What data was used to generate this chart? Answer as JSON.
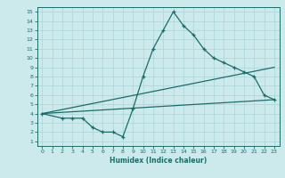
{
  "bg_color": "#cce9ec",
  "line_color": "#1a6e6a",
  "grid_color": "#aad4d8",
  "xlabel": "Humidex (Indice chaleur)",
  "xlim": [
    -0.5,
    23.5
  ],
  "ylim": [
    0.5,
    15.5
  ],
  "xticks": [
    0,
    1,
    2,
    3,
    4,
    5,
    6,
    7,
    8,
    9,
    10,
    11,
    12,
    13,
    14,
    15,
    16,
    17,
    18,
    19,
    20,
    21,
    22,
    23
  ],
  "yticks": [
    1,
    2,
    3,
    4,
    5,
    6,
    7,
    8,
    9,
    10,
    11,
    12,
    13,
    14,
    15
  ],
  "main_x": [
    0,
    2,
    3,
    4,
    5,
    6,
    7,
    8,
    9,
    10,
    11,
    12,
    13,
    14,
    15,
    16,
    17,
    18,
    19,
    20,
    21,
    22,
    23
  ],
  "main_y": [
    4.0,
    3.5,
    3.5,
    3.5,
    2.5,
    2.0,
    2.0,
    1.5,
    4.5,
    8.0,
    11.0,
    13.0,
    15.0,
    13.5,
    12.5,
    11.0,
    10.0,
    9.5,
    9.0,
    8.5,
    8.0,
    6.0,
    5.5
  ],
  "line2_x": [
    0,
    23
  ],
  "line2_y": [
    4.0,
    5.5
  ],
  "line3_x": [
    0,
    23
  ],
  "line3_y": [
    4.0,
    9.0
  ]
}
